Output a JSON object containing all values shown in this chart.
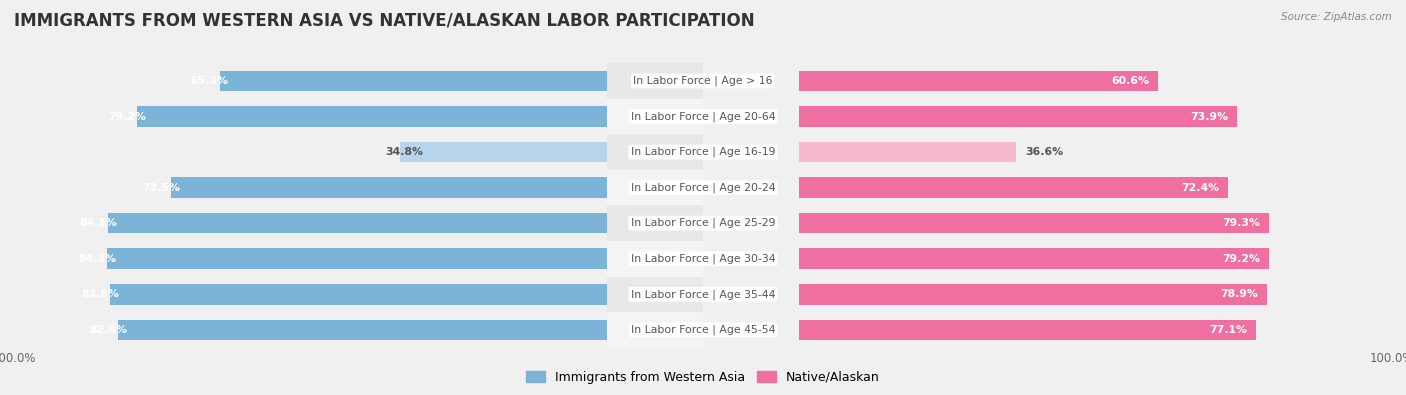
{
  "title": "IMMIGRANTS FROM WESTERN ASIA VS NATIVE/ALASKAN LABOR PARTICIPATION",
  "source": "Source: ZipAtlas.com",
  "categories": [
    "In Labor Force | Age > 16",
    "In Labor Force | Age 20-64",
    "In Labor Force | Age 16-19",
    "In Labor Force | Age 20-24",
    "In Labor Force | Age 25-29",
    "In Labor Force | Age 30-34",
    "In Labor Force | Age 35-44",
    "In Labor Force | Age 45-54"
  ],
  "western_asia_values": [
    65.3,
    79.2,
    34.8,
    73.5,
    84.1,
    84.3,
    83.8,
    82.4
  ],
  "native_alaskan_values": [
    60.6,
    73.9,
    36.6,
    72.4,
    79.3,
    79.2,
    78.9,
    77.1
  ],
  "western_asia_color": "#7bb3d9",
  "western_asia_color_light": "#b8d4ea",
  "native_alaskan_color": "#ee6fa0",
  "native_alaskan_color_light": "#f5b8cf",
  "bar_height": 0.58,
  "max_value": 100.0,
  "bg_color": "#f0f0f0",
  "row_bg_colors": [
    "#e8e8e8",
    "#f4f4f4"
  ],
  "title_fontsize": 12,
  "label_fontsize": 7.8,
  "value_fontsize": 7.8,
  "legend_fontsize": 9,
  "axis_label_fontsize": 8.5
}
